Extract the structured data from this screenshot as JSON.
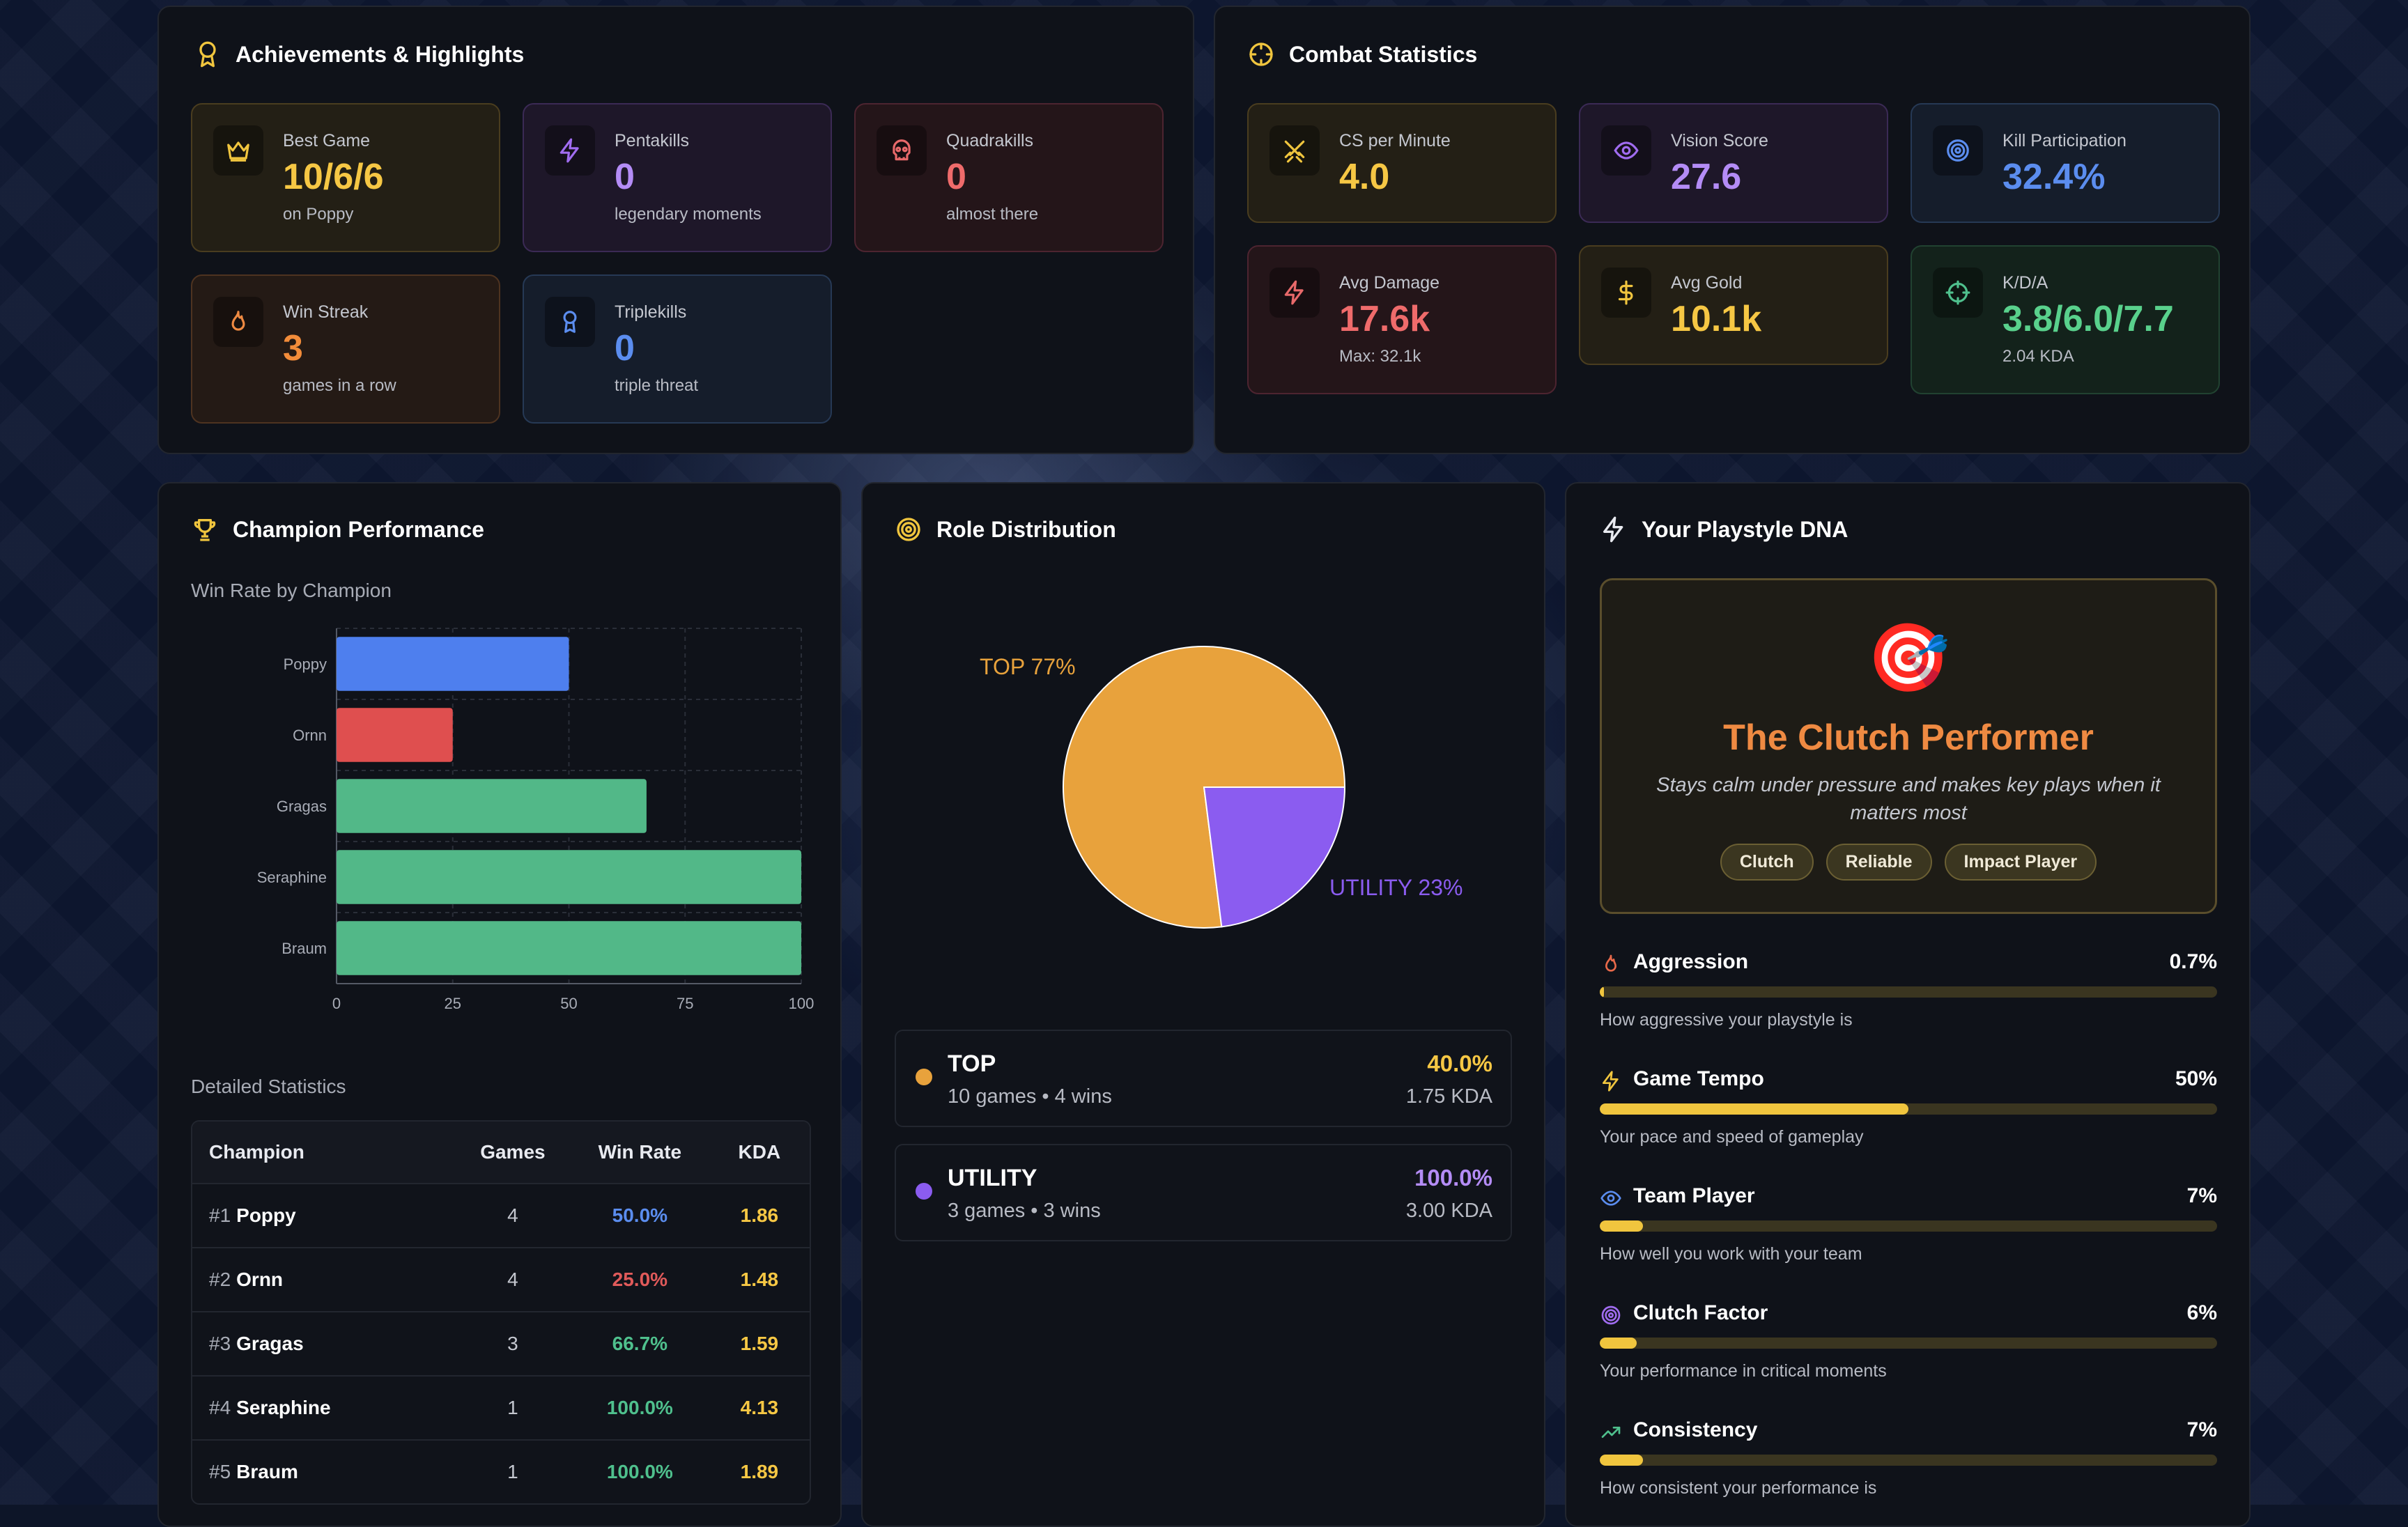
{
  "achievements": {
    "title": "Achievements & Highlights",
    "cards": [
      {
        "label": "Best Game",
        "value": "10/6/6",
        "sub": "on Poppy",
        "icon": "crown-icon"
      },
      {
        "label": "Pentakills",
        "value": "0",
        "sub": "legendary moments",
        "icon": "lightning-icon"
      },
      {
        "label": "Quadrakills",
        "value": "0",
        "sub": "almost there",
        "icon": "skull-icon"
      },
      {
        "label": "Win Streak",
        "value": "3",
        "sub": "games in a row",
        "icon": "flame-icon"
      },
      {
        "label": "Triplekills",
        "value": "0",
        "sub": "triple threat",
        "icon": "medal-icon"
      }
    ]
  },
  "combat": {
    "title": "Combat Statistics",
    "cards": [
      {
        "label": "CS per Minute",
        "value": "4.0",
        "sub": "",
        "icon": "swords-icon"
      },
      {
        "label": "Vision Score",
        "value": "27.6",
        "sub": "",
        "icon": "eye-icon"
      },
      {
        "label": "Kill Participation",
        "value": "32.4%",
        "sub": "",
        "icon": "target-icon"
      },
      {
        "label": "Avg Damage",
        "value": "17.6k",
        "sub": "Max: 32.1k",
        "icon": "lightning-icon"
      },
      {
        "label": "Avg Gold",
        "value": "10.1k",
        "sub": "",
        "icon": "dollar-icon"
      },
      {
        "label": "K/D/A",
        "value": "3.8/6.0/7.7",
        "sub": "2.04 KDA",
        "icon": "crosshair-icon"
      }
    ]
  },
  "champion_performance": {
    "title": "Champion Performance",
    "chart_title": "Win Rate by Champion",
    "table_title": "Detailed Statistics",
    "columns": [
      "Champion",
      "Games",
      "Win Rate",
      "KDA"
    ],
    "rows": [
      {
        "rank": "#1",
        "name": "Poppy",
        "games": "4",
        "win_rate": "50.0%",
        "kda": "1.86",
        "color": "#5b8def"
      },
      {
        "rank": "#2",
        "name": "Ornn",
        "games": "4",
        "win_rate": "25.0%",
        "kda": "1.48",
        "color": "#e05a5a"
      },
      {
        "rank": "#3",
        "name": "Gragas",
        "games": "3",
        "win_rate": "66.7%",
        "kda": "1.59",
        "color": "#4fc08d"
      },
      {
        "rank": "#4",
        "name": "Seraphine",
        "games": "1",
        "win_rate": "100.0%",
        "kda": "4.13",
        "color": "#4fc08d"
      },
      {
        "rank": "#5",
        "name": "Braum",
        "games": "1",
        "win_rate": "100.0%",
        "kda": "1.89",
        "color": "#4fc08d"
      }
    ]
  },
  "chart_data": [
    {
      "type": "bar",
      "orientation": "horizontal",
      "title": "Win Rate by Champion",
      "categories": [
        "Poppy",
        "Ornn",
        "Gragas",
        "Seraphine",
        "Braum"
      ],
      "values": [
        50,
        25,
        66.7,
        100,
        100
      ],
      "colors": [
        "#4e7fee",
        "#df4f4f",
        "#52b888",
        "#52b888",
        "#52b888"
      ],
      "xlim": [
        0,
        100
      ],
      "xticks": [
        "0",
        "25",
        "50",
        "75",
        "100"
      ],
      "grid": true
    },
    {
      "type": "pie",
      "slices": [
        {
          "label": "TOP 77%",
          "value": 77,
          "color": "#e8a23c"
        },
        {
          "label": "UTILITY 23%",
          "value": 23,
          "color": "#8b5cf0"
        }
      ]
    }
  ],
  "roles": {
    "title": "Role Distribution",
    "items": [
      {
        "name": "TOP",
        "details": "10 games • 4 wins",
        "pct": "40.0%",
        "kda": "1.75 KDA",
        "color": "#e8a23c",
        "pct_color": "#f6c744"
      },
      {
        "name": "UTILITY",
        "details": "3 games • 3 wins",
        "pct": "100.0%",
        "kda": "3.00 KDA",
        "color": "#8b5cf0",
        "pct_color": "#b48cf6"
      }
    ]
  },
  "playstyle": {
    "title": "Your Playstyle DNA",
    "emoji": "🎯",
    "archetype": "The Clutch Performer",
    "description": "Stays calm under pressure and makes key plays when it matters most",
    "tags": [
      "Clutch",
      "Reliable",
      "Impact Player"
    ],
    "traits": [
      {
        "name": "Aggression",
        "value": "0.7%",
        "fraction": 0.007,
        "desc": "How aggressive your playstyle is",
        "icon": "flame-icon",
        "icon_color": "#e8694a"
      },
      {
        "name": "Game Tempo",
        "value": "50%",
        "fraction": 0.5,
        "desc": "Your pace and speed of gameplay",
        "icon": "lightning-icon",
        "icon_color": "#f0c53e"
      },
      {
        "name": "Team Player",
        "value": "7%",
        "fraction": 0.07,
        "desc": "How well you work with your team",
        "icon": "eye-icon",
        "icon_color": "#5b8def"
      },
      {
        "name": "Clutch Factor",
        "value": "6%",
        "fraction": 0.06,
        "desc": "Your performance in critical moments",
        "icon": "target-icon",
        "icon_color": "#a06cf0"
      },
      {
        "name": "Consistency",
        "value": "7%",
        "fraction": 0.07,
        "desc": "How consistent your performance is",
        "icon": "trend-up-icon",
        "icon_color": "#4fc08d"
      }
    ]
  }
}
